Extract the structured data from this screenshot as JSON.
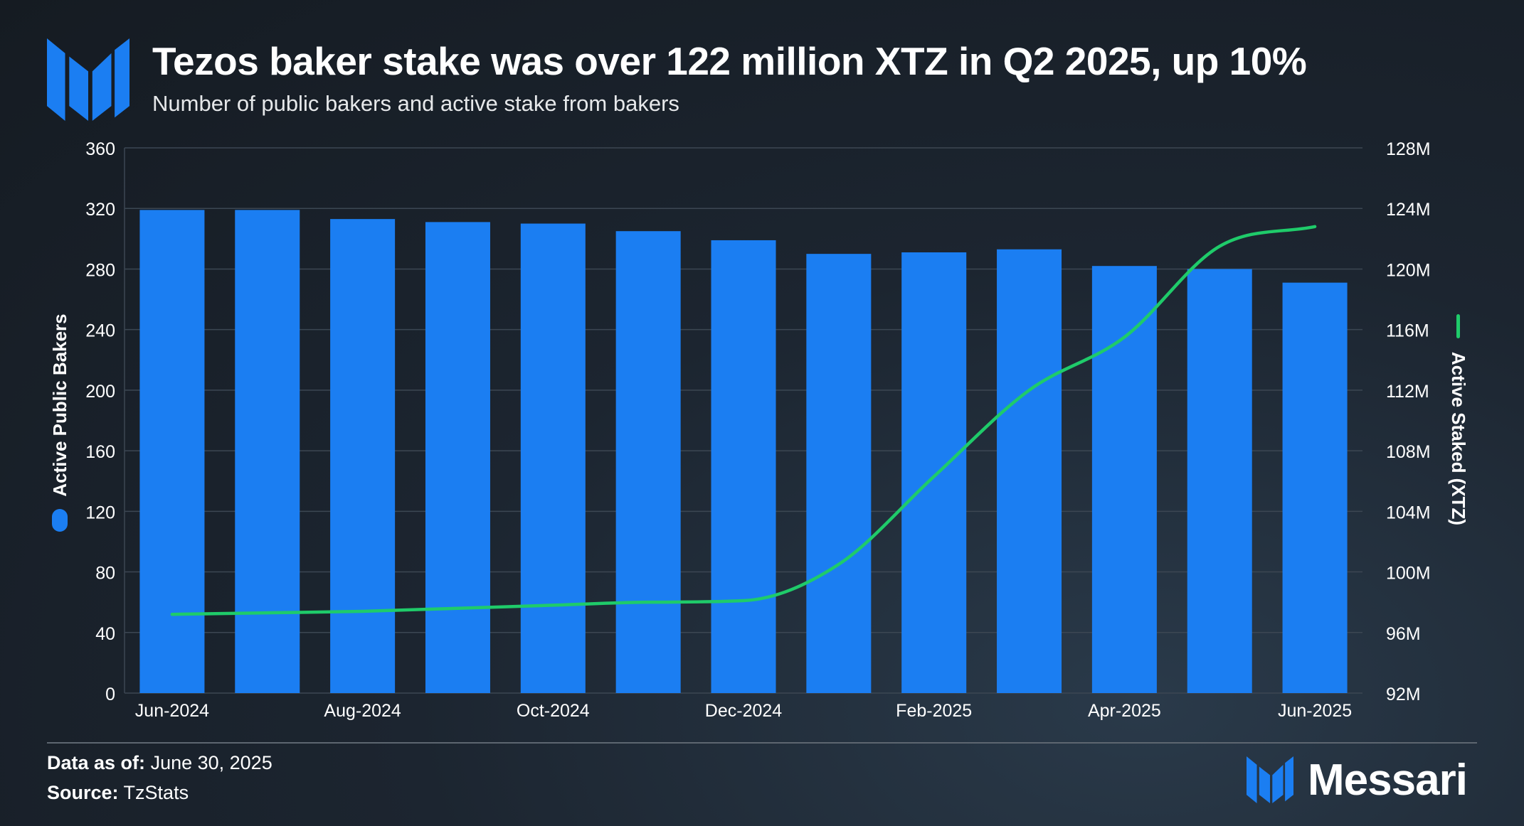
{
  "header": {
    "logo_icon": "messari-m-icon",
    "title": "Tezos baker stake was over 122 million XTZ in Q2 2025, up 10%",
    "subtitle": "Number of public bakers and active stake from bakers"
  },
  "chart_data": {
    "type": "bar",
    "categories": [
      "Jun-2024",
      "Jul-2024",
      "Aug-2024",
      "Sep-2024",
      "Oct-2024",
      "Nov-2024",
      "Dec-2024",
      "Jan-2025",
      "Feb-2025",
      "Mar-2025",
      "Apr-2025",
      "May-2025",
      "Jun-2025"
    ],
    "x_tick_labels": [
      "Jun-2024",
      "Aug-2024",
      "Oct-2024",
      "Dec-2024",
      "Feb-2025",
      "Apr-2025",
      "Jun-2025"
    ],
    "series": [
      {
        "name": "Active Public Bakers",
        "type": "bar",
        "axis": "left",
        "color": "#1b7ef2",
        "values": [
          319,
          319,
          313,
          311,
          310,
          305,
          299,
          290,
          291,
          293,
          282,
          280,
          271
        ]
      },
      {
        "name": "Active Staked (XTZ)",
        "type": "line",
        "axis": "right",
        "color": "#1fcb6a",
        "values": [
          97.2,
          97.3,
          97.4,
          97.6,
          97.8,
          98.0,
          98.1,
          100.5,
          106.3,
          112.0,
          115.5,
          121.5,
          122.8
        ]
      }
    ],
    "yaxis_left": {
      "label": "Active Public Bakers",
      "range": [
        0,
        360
      ],
      "ticks": [
        "0",
        "40",
        "80",
        "120",
        "160",
        "200",
        "240",
        "280",
        "320",
        "360"
      ]
    },
    "yaxis_right": {
      "label": "Active Staked (XTZ)",
      "range": [
        92,
        128
      ],
      "ticks": [
        "92M",
        "96M",
        "100M",
        "104M",
        "108M",
        "112M",
        "116M",
        "120M",
        "124M",
        "128M"
      ]
    },
    "grid": true
  },
  "footer": {
    "data_as_of_label": "Data as of:",
    "data_as_of_value": "June 30, 2025",
    "source_label": "Source:",
    "source_value": "TzStats",
    "brand_icon": "messari-m-icon",
    "brand_name": "Messari"
  }
}
